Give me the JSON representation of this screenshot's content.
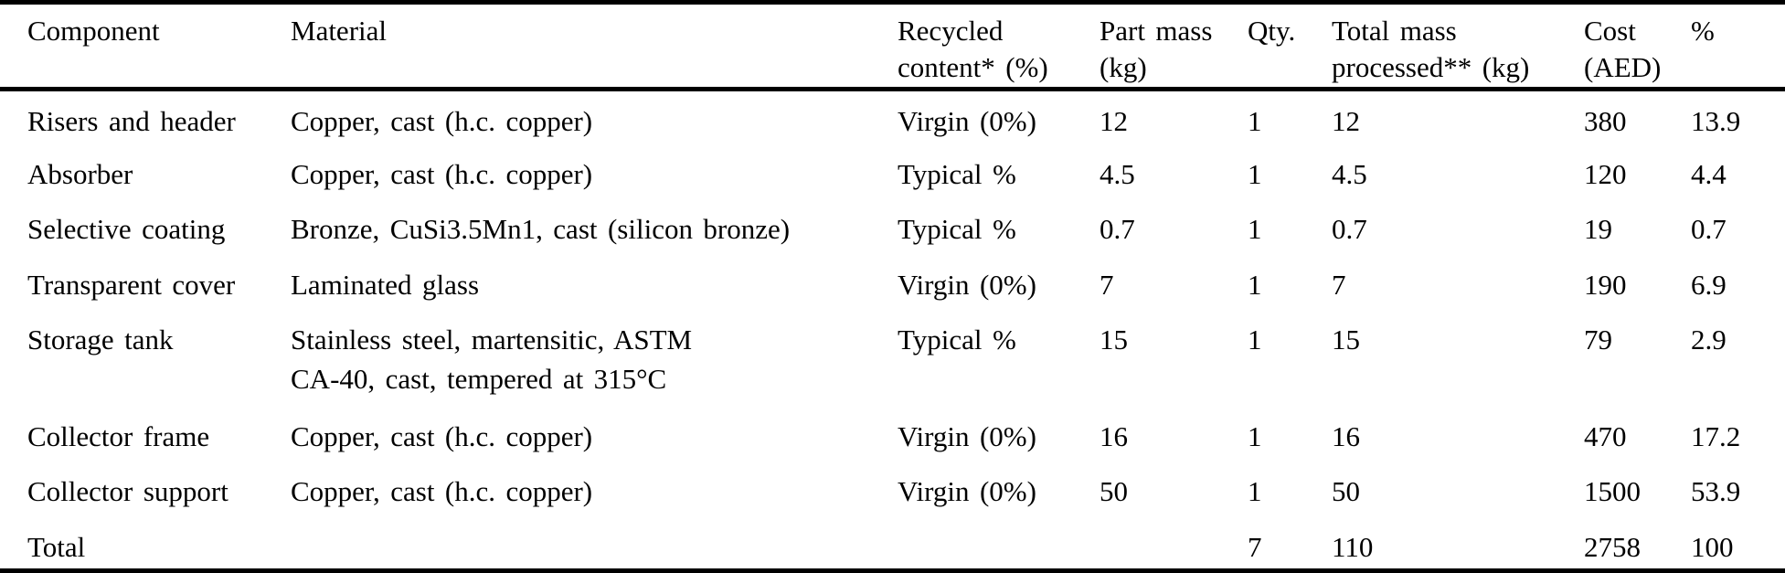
{
  "table": {
    "columns": [
      {
        "label": "Component"
      },
      {
        "label": "Material"
      },
      {
        "label": "Recycled\ncontent* (%)"
      },
      {
        "label": "Part mass\n(kg)"
      },
      {
        "label": "Qty."
      },
      {
        "label": "Total mass\nprocessed** (kg)"
      },
      {
        "label": "Cost\n(AED)"
      },
      {
        "label": "%"
      }
    ],
    "rows": [
      {
        "component": "Risers and header",
        "material": "Copper, cast (h.c. copper)",
        "recycled": "Virgin (0%)",
        "part_mass": "12",
        "qty": "1",
        "total_mass": "12",
        "cost": "380",
        "pct": "13.9"
      },
      {
        "component": "Absorber",
        "material": "Copper, cast (h.c. copper)",
        "recycled": "Typical %",
        "part_mass": "4.5",
        "qty": "1",
        "total_mass": "4.5",
        "cost": "120",
        "pct": "4.4"
      },
      {
        "component": "Selective coating",
        "material": "Bronze, CuSi3.5Mn1, cast (silicon bronze)",
        "recycled": "Typical %",
        "part_mass": "0.7",
        "qty": "1",
        "total_mass": "0.7",
        "cost": "19",
        "pct": "0.7"
      },
      {
        "component": "Transparent cover",
        "material": "Laminated glass",
        "recycled": "Virgin (0%)",
        "part_mass": "7",
        "qty": "1",
        "total_mass": "7",
        "cost": "190",
        "pct": "6.9"
      },
      {
        "component": "Storage tank",
        "material": "Stainless steel, martensitic, ASTM\nCA-40, cast, tempered at 315°C",
        "recycled": "Typical %",
        "part_mass": "15",
        "qty": "1",
        "total_mass": "15",
        "cost": "79",
        "pct": "2.9"
      },
      {
        "component": "Collector frame",
        "material": "Copper, cast (h.c. copper)",
        "recycled": "Virgin (0%)",
        "part_mass": "16",
        "qty": "1",
        "total_mass": "16",
        "cost": "470",
        "pct": "17.2"
      },
      {
        "component": "Collector support",
        "material": "Copper, cast (h.c. copper)",
        "recycled": "Virgin (0%)",
        "part_mass": "50",
        "qty": "1",
        "total_mass": "50",
        "cost": "1500",
        "pct": "53.9"
      },
      {
        "component": "Total",
        "material": "",
        "recycled": "",
        "part_mass": "",
        "qty": "7",
        "total_mass": "110",
        "cost": "2758",
        "pct": "100"
      }
    ]
  },
  "colors": {
    "text": "#000000",
    "background": "#ffffff",
    "rule": "#000000"
  }
}
